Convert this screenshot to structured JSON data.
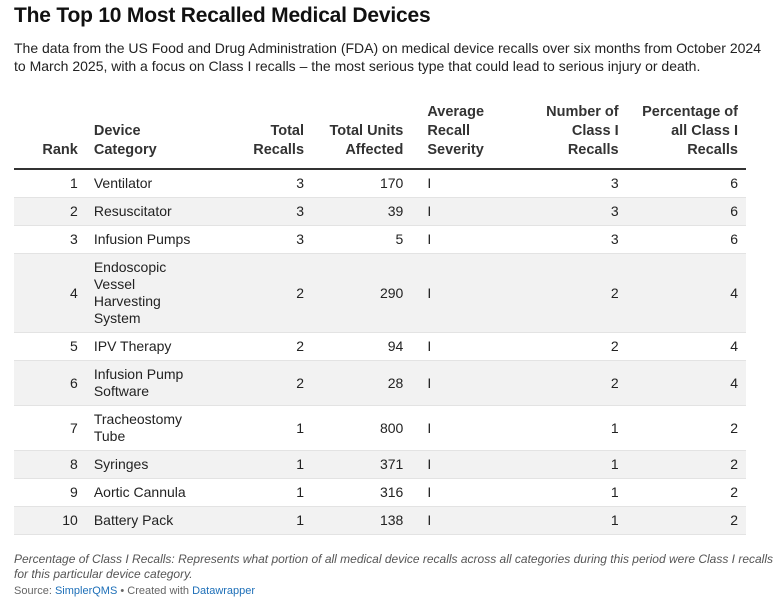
{
  "title": "The Top 10 Most Recalled Medical Devices",
  "description": "The data from the US Food and Drug Administration (FDA) on medical device recalls over six months from October 2024 to March 2025, with a focus on Class I recalls – the most serious type that could lead to serious injury or death.",
  "footnote": "Percentage of Class I Recalls: Represents what portion of all medical device recalls across all categories during this period were Class I recalls for this particular device category.",
  "source": {
    "label": "Source: ",
    "name": "SimplerQMS",
    "separator": " • Created with ",
    "tool": "Datawrapper"
  },
  "colors": {
    "stripe": "#f2f2f2",
    "header_rule": "#333333",
    "link": "#1d6fb8"
  },
  "chart_data": {
    "type": "table",
    "columns": [
      {
        "key": "rank",
        "label": "Rank"
      },
      {
        "key": "device",
        "label": "Device Category"
      },
      {
        "key": "total_recalls",
        "label": "Total Recalls"
      },
      {
        "key": "units",
        "label": "Total Units Affected"
      },
      {
        "key": "severity",
        "label": "Average Recall Severity"
      },
      {
        "key": "class1",
        "label": "Number of Class I Recalls"
      },
      {
        "key": "pct",
        "label": "Percentage of all Class I Recalls"
      }
    ],
    "rows": [
      {
        "rank": "1",
        "device": "Ventilator",
        "total_recalls": "3",
        "units": "170",
        "severity": "I",
        "class1": "3",
        "pct": "6"
      },
      {
        "rank": "2",
        "device": "Resuscitator",
        "total_recalls": "3",
        "units": "39",
        "severity": "I",
        "class1": "3",
        "pct": "6"
      },
      {
        "rank": "3",
        "device": "Infusion Pumps",
        "total_recalls": "3",
        "units": "5",
        "severity": "I",
        "class1": "3",
        "pct": "6"
      },
      {
        "rank": "4",
        "device": "Endoscopic Vessel Harvesting System",
        "total_recalls": "2",
        "units": "290",
        "severity": "I",
        "class1": "2",
        "pct": "4"
      },
      {
        "rank": "5",
        "device": "IPV Therapy",
        "total_recalls": "2",
        "units": "94",
        "severity": "I",
        "class1": "2",
        "pct": "4"
      },
      {
        "rank": "6",
        "device": "Infusion Pump Software",
        "total_recalls": "2",
        "units": "28",
        "severity": "I",
        "class1": "2",
        "pct": "4"
      },
      {
        "rank": "7",
        "device": "Tracheostomy Tube",
        "total_recalls": "1",
        "units": "800",
        "severity": "I",
        "class1": "1",
        "pct": "2"
      },
      {
        "rank": "8",
        "device": "Syringes",
        "total_recalls": "1",
        "units": "371",
        "severity": "I",
        "class1": "1",
        "pct": "2"
      },
      {
        "rank": "9",
        "device": "Aortic Cannula",
        "total_recalls": "1",
        "units": "316",
        "severity": "I",
        "class1": "1",
        "pct": "2"
      },
      {
        "rank": "10",
        "device": "Battery Pack",
        "total_recalls": "1",
        "units": "138",
        "severity": "I",
        "class1": "1",
        "pct": "2"
      }
    ]
  }
}
